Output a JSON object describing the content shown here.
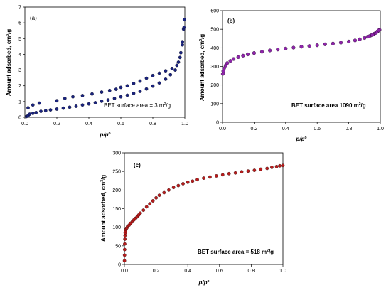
{
  "chart_data": [
    {
      "type": "scatter",
      "panel_label": "(a)",
      "xlabel": "p/p°",
      "ylabel": "Amount adsorbed, cm³/g",
      "xlim": [
        0,
        1.0
      ],
      "ylim": [
        0,
        7
      ],
      "xticks": [
        "0.0",
        "0.2",
        "0.4",
        "0.6",
        "0.8",
        "1.0"
      ],
      "yticks": [
        "0",
        "1",
        "2",
        "3",
        "4",
        "5",
        "6",
        "7"
      ],
      "annotation": "BET surface area = 3 m²/g",
      "color": "#1a237e",
      "series": [
        {
          "values": [
            [
              0.01,
              0.05
            ],
            [
              0.02,
              0.1
            ],
            [
              0.03,
              0.2
            ],
            [
              0.05,
              0.25
            ],
            [
              0.07,
              0.3
            ],
            [
              0.1,
              0.38
            ],
            [
              0.13,
              0.42
            ],
            [
              0.16,
              0.47
            ],
            [
              0.2,
              0.52
            ],
            [
              0.24,
              0.58
            ],
            [
              0.28,
              0.64
            ],
            [
              0.32,
              0.7
            ],
            [
              0.36,
              0.78
            ],
            [
              0.4,
              0.85
            ],
            [
              0.44,
              0.93
            ],
            [
              0.48,
              1.02
            ],
            [
              0.52,
              1.1
            ],
            [
              0.56,
              1.2
            ],
            [
              0.6,
              1.3
            ],
            [
              0.64,
              1.4
            ],
            [
              0.68,
              1.52
            ],
            [
              0.72,
              1.65
            ],
            [
              0.76,
              1.8
            ],
            [
              0.8,
              1.98
            ],
            [
              0.84,
              2.18
            ],
            [
              0.88,
              2.42
            ],
            [
              0.91,
              2.7
            ],
            [
              0.94,
              3.0
            ],
            [
              0.96,
              3.5
            ],
            [
              0.975,
              4.1
            ],
            [
              0.985,
              4.8
            ],
            [
              0.992,
              5.6
            ],
            [
              0.997,
              6.2
            ]
          ]
        },
        {
          "values": [
            [
              0.02,
              0.6
            ],
            [
              0.05,
              0.78
            ],
            [
              0.09,
              0.9
            ],
            [
              0.2,
              1.05
            ],
            [
              0.25,
              1.2
            ],
            [
              0.3,
              1.3
            ],
            [
              0.36,
              1.38
            ],
            [
              0.42,
              1.48
            ],
            [
              0.48,
              1.6
            ],
            [
              0.53,
              1.7
            ],
            [
              0.57,
              1.78
            ],
            [
              0.6,
              1.9
            ],
            [
              0.64,
              2.0
            ],
            [
              0.68,
              2.15
            ],
            [
              0.72,
              2.3
            ],
            [
              0.76,
              2.48
            ],
            [
              0.8,
              2.65
            ],
            [
              0.84,
              2.8
            ],
            [
              0.88,
              2.95
            ],
            [
              0.92,
              3.1
            ],
            [
              0.95,
              3.3
            ],
            [
              0.97,
              3.8
            ],
            [
              0.985,
              4.6
            ],
            [
              0.995,
              5.7
            ]
          ]
        }
      ]
    },
    {
      "type": "scatter",
      "panel_label": "(b)",
      "xlabel": "p/p°",
      "ylabel": "Amount adsorbed, cm³/g",
      "xlim": [
        0,
        1.0
      ],
      "ylim": [
        0,
        600
      ],
      "xticks": [
        "0.0",
        "0.2",
        "0.4",
        "0.6",
        "0.8",
        "1.0"
      ],
      "yticks": [
        "0",
        "100",
        "200",
        "300",
        "400",
        "500",
        "600"
      ],
      "annotation": "BET surface area 1090 m²/g",
      "color": "#8e24aa",
      "series": [
        {
          "values": [
            [
              0.002,
              260
            ],
            [
              0.005,
              275
            ],
            [
              0.01,
              290
            ],
            [
              0.02,
              305
            ],
            [
              0.03,
              318
            ],
            [
              0.05,
              330
            ],
            [
              0.07,
              340
            ],
            [
              0.1,
              350
            ],
            [
              0.13,
              358
            ],
            [
              0.16,
              365
            ],
            [
              0.2,
              372
            ],
            [
              0.25,
              379
            ],
            [
              0.3,
              386
            ],
            [
              0.35,
              391
            ],
            [
              0.4,
              396
            ],
            [
              0.45,
              401
            ],
            [
              0.5,
              406
            ],
            [
              0.55,
              410
            ],
            [
              0.6,
              414
            ],
            [
              0.65,
              419
            ],
            [
              0.7,
              423
            ],
            [
              0.75,
              428
            ],
            [
              0.8,
              434
            ],
            [
              0.84,
              440
            ],
            [
              0.87,
              446
            ],
            [
              0.9,
              453
            ],
            [
              0.92,
              460
            ],
            [
              0.94,
              467
            ],
            [
              0.96,
              475
            ],
            [
              0.975,
              483
            ],
            [
              0.985,
              490
            ],
            [
              0.995,
              497
            ]
          ]
        },
        {
          "values": [
            [
              0.93,
              462
            ],
            [
              0.95,
              470
            ],
            [
              0.97,
              480
            ],
            [
              0.98,
              487
            ],
            [
              0.99,
              494
            ]
          ]
        }
      ]
    },
    {
      "type": "scatter",
      "panel_label": "(c)",
      "xlabel": "p/p°",
      "ylabel": "Amount adsorbed, cm³/g",
      "xlim": [
        0,
        1.0
      ],
      "ylim": [
        0,
        300
      ],
      "xticks": [
        "0.0",
        "0.2",
        "0.4",
        "0.6",
        "0.8",
        "1.0"
      ],
      "yticks": [
        "0",
        "50",
        "100",
        "150",
        "200",
        "250",
        "300"
      ],
      "annotation": "BET surface area = 518 m²/g",
      "color": "#b71c1c",
      "series": [
        {
          "values": [
            [
              0.0005,
              10
            ],
            [
              0.001,
              25
            ],
            [
              0.0015,
              40
            ],
            [
              0.002,
              55
            ],
            [
              0.003,
              68
            ],
            [
              0.004,
              78
            ],
            [
              0.005,
              85
            ],
            [
              0.007,
              90
            ],
            [
              0.01,
              94
            ],
            [
              0.015,
              98
            ],
            [
              0.02,
              102
            ],
            [
              0.03,
              106
            ],
            [
              0.04,
              111
            ],
            [
              0.05,
              115
            ],
            [
              0.06,
              120
            ],
            [
              0.07,
              124
            ],
            [
              0.08,
              128
            ],
            [
              0.09,
              133
            ],
            [
              0.1,
              138
            ],
            [
              0.12,
              146
            ],
            [
              0.14,
              155
            ],
            [
              0.16,
              163
            ],
            [
              0.18,
              171
            ],
            [
              0.2,
              179
            ],
            [
              0.22,
              186
            ],
            [
              0.25,
              193
            ],
            [
              0.28,
              200
            ],
            [
              0.31,
              207
            ],
            [
              0.34,
              212
            ],
            [
              0.37,
              217
            ],
            [
              0.4,
              221
            ],
            [
              0.43,
              224
            ],
            [
              0.46,
              228
            ],
            [
              0.5,
              232
            ],
            [
              0.54,
              235
            ],
            [
              0.58,
              238
            ],
            [
              0.62,
              241
            ],
            [
              0.66,
              244
            ],
            [
              0.7,
              246
            ],
            [
              0.74,
              249
            ],
            [
              0.78,
              251
            ],
            [
              0.82,
              253
            ],
            [
              0.86,
              256
            ],
            [
              0.9,
              258
            ],
            [
              0.93,
              261
            ],
            [
              0.96,
              263
            ],
            [
              0.98,
              265
            ],
            [
              1.0,
              266
            ]
          ]
        }
      ]
    }
  ]
}
